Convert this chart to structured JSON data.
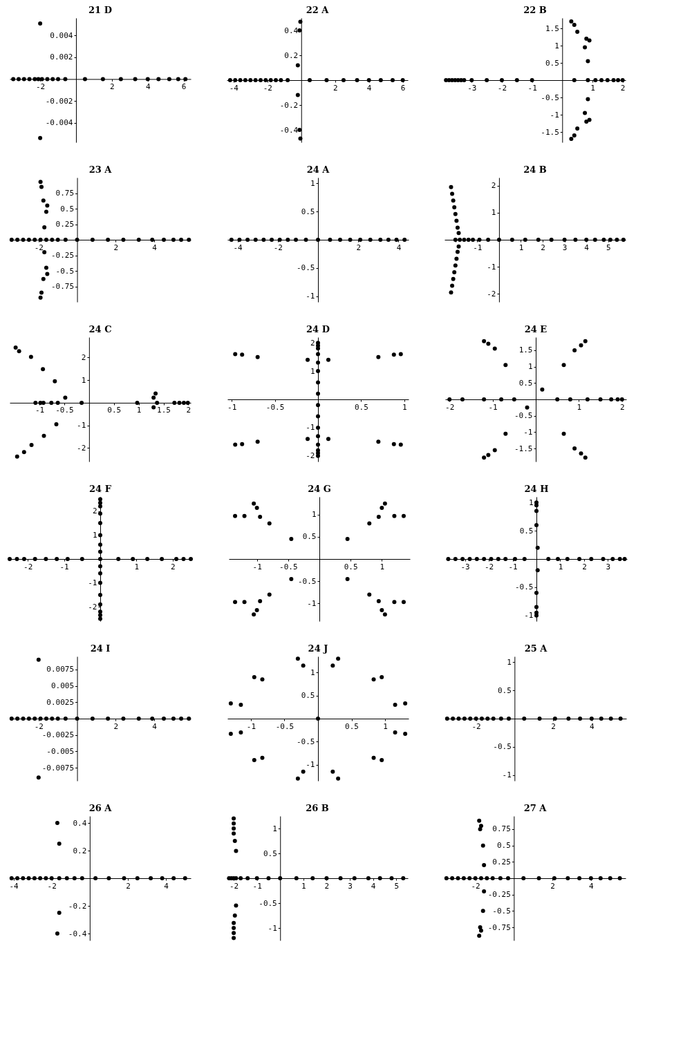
{
  "chart_data": [
    {
      "type": "scatter",
      "title": "21 D",
      "marker": "circle",
      "xlim": [
        -3.7,
        6.4
      ],
      "ylim": [
        -0.0058,
        0.0056
      ],
      "xticks": [
        -2,
        2,
        4,
        6
      ],
      "yticks": [
        -0.004,
        -0.002,
        0.002,
        0.004
      ],
      "x": [
        -2,
        -2,
        -3.5,
        -3.2,
        -2.9,
        -2.6,
        -2.3,
        -2.1,
        -1.9,
        -1.6,
        -1.3,
        -1,
        -0.6,
        0.5,
        1.5,
        2.5,
        3.3,
        4,
        4.6,
        5.2,
        5.7,
        6.1
      ],
      "series": [
        {
          "color": "#000000",
          "values": [
            0.0051,
            -0.0054,
            0,
            0,
            0,
            0,
            0,
            0,
            0,
            0,
            0,
            0,
            0,
            0,
            0,
            0,
            0,
            0,
            0,
            0,
            0,
            0
          ]
        }
      ]
    },
    {
      "type": "scatter",
      "title": "22 A",
      "marker": "circle",
      "xlim": [
        -4.4,
        6.3
      ],
      "ylim": [
        -0.5,
        0.5
      ],
      "xticks": [
        -4,
        -2,
        2,
        4,
        6
      ],
      "yticks": [
        -0.4,
        -0.2,
        0.2,
        0.4
      ],
      "x": [
        -0.05,
        -0.1,
        -0.2,
        -0.2,
        -0.1,
        -0.05,
        -4.2,
        -3.9,
        -3.6,
        -3.3,
        -3,
        -2.7,
        -2.4,
        -2.1,
        -1.8,
        -1.5,
        -1.2,
        -0.8,
        0.5,
        1.5,
        2.5,
        3.3,
        4,
        4.7,
        5.4,
        6
      ],
      "series": [
        {
          "color": "#000000",
          "values": [
            0.47,
            0.4,
            0.12,
            -0.12,
            -0.4,
            -0.47,
            0,
            0,
            0,
            0,
            0,
            0,
            0,
            0,
            0,
            0,
            0,
            0,
            0,
            0,
            0,
            0,
            0,
            0,
            0,
            0
          ]
        }
      ]
    },
    {
      "type": "scatter",
      "title": "22 B",
      "marker": "circle",
      "xlim": [
        -3.9,
        2.1
      ],
      "ylim": [
        -1.8,
        1.8
      ],
      "xticks": [
        -3,
        -2,
        -1,
        1,
        2
      ],
      "yticks": [
        -1.5,
        -1,
        -0.5,
        0.5,
        1,
        1.5
      ],
      "x": [
        0.3,
        0.4,
        0.5,
        0.8,
        0.9,
        0.75,
        0.85,
        0.3,
        0.4,
        0.5,
        0.8,
        0.9,
        0.75,
        0.85,
        -3.85,
        -3.75,
        -3.65,
        -3.55,
        -3.45,
        -3.35,
        -3.25,
        -3,
        -2.5,
        -2,
        -1.5,
        -1,
        0.4,
        0.85,
        1.1,
        1.3,
        1.5,
        1.7,
        1.85,
        2
      ],
      "series": [
        {
          "color": "#000000",
          "values": [
            1.7,
            1.6,
            1.4,
            1.2,
            1.15,
            0.95,
            0.55,
            -1.7,
            -1.6,
            -1.4,
            -1.2,
            -1.15,
            -0.95,
            -0.55,
            0,
            0,
            0,
            0,
            0,
            0,
            0,
            0,
            0,
            0,
            0,
            0,
            0,
            0,
            0,
            0,
            0,
            0,
            0,
            0
          ]
        }
      ]
    },
    {
      "type": "scatter",
      "title": "23 A",
      "marker": "circle",
      "xlim": [
        -3.5,
        5.9
      ],
      "ylim": [
        -1,
        1
      ],
      "xticks": [
        -2,
        2,
        4
      ],
      "yticks": [
        -0.75,
        -0.5,
        -0.25,
        0.25,
        0.5,
        0.75
      ],
      "x": [
        -1.9,
        -1.85,
        -1.75,
        -1.55,
        -1.6,
        -1.7,
        -1.9,
        -1.85,
        -1.75,
        -1.55,
        -1.6,
        -1.7,
        -3.4,
        -3.1,
        -2.8,
        -2.5,
        -2.2,
        -1.9,
        -1.6,
        -1.3,
        -1,
        -0.6,
        0,
        0.8,
        1.6,
        2.4,
        3.2,
        3.9,
        4.5,
        5,
        5.4,
        5.8
      ],
      "series": [
        {
          "color": "#000000",
          "values": [
            0.93,
            0.85,
            0.63,
            0.55,
            0.45,
            0.2,
            -0.93,
            -0.85,
            -0.63,
            -0.55,
            -0.45,
            -0.2,
            0,
            0,
            0,
            0,
            0,
            0,
            0,
            0,
            0,
            0,
            0,
            0,
            0,
            0,
            0,
            0,
            0,
            0,
            0,
            0
          ]
        }
      ]
    },
    {
      "type": "scatter",
      "title": "24 A",
      "marker": "circle",
      "xlim": [
        -4.5,
        4.5
      ],
      "ylim": [
        -1.1,
        1.1
      ],
      "xticks": [
        -4,
        -2,
        2,
        4
      ],
      "yticks": [
        -1,
        -0.5,
        0.5,
        1
      ],
      "x": [
        -4.3,
        -3.9,
        -3.5,
        -3.1,
        -2.7,
        -2.3,
        -1.9,
        -1.5,
        -1.1,
        -0.6,
        0,
        0.6,
        1.1,
        1.6,
        2.1,
        2.6,
        3.1,
        3.5,
        3.9,
        4.3
      ],
      "series": [
        {
          "color": "#000000",
          "values": [
            0,
            0,
            0,
            0,
            0,
            0,
            0,
            0,
            0,
            0,
            0,
            0,
            0,
            0,
            0,
            0,
            0,
            0,
            0,
            0
          ]
        }
      ]
    },
    {
      "type": "scatter",
      "title": "24 B",
      "marker": "circle",
      "xlim": [
        -2.5,
        5.8
      ],
      "ylim": [
        -2.3,
        2.3
      ],
      "xticks": [
        {
          "value": -2,
          "label": null
        },
        -1,
        1,
        2,
        3,
        4,
        5
      ],
      "yticks": [
        -2,
        -1,
        1,
        2
      ],
      "x": [
        -2.2,
        -2.15,
        -2.1,
        -2.05,
        -2,
        -1.95,
        -1.9,
        -1.85,
        -2.2,
        -2.15,
        -2.1,
        -2.05,
        -2,
        -1.95,
        -1.9,
        -1.85,
        -2,
        -1.8,
        -1.6,
        -1.4,
        -1.2,
        -0.9,
        -0.5,
        0,
        0.6,
        1.2,
        1.8,
        2.4,
        3,
        3.5,
        4,
        4.4,
        4.8,
        5.1,
        5.4,
        5.7
      ],
      "series": [
        {
          "color": "#000000",
          "values": [
            1.95,
            1.7,
            1.45,
            1.2,
            0.95,
            0.7,
            0.45,
            0.25,
            -1.95,
            -1.7,
            -1.45,
            -1.2,
            -0.95,
            -0.7,
            -0.45,
            -0.25,
            0,
            0,
            0,
            0,
            0,
            0,
            0,
            0,
            0,
            0,
            0,
            0,
            0,
            0,
            0,
            0,
            0,
            0,
            0,
            0
          ]
        }
      ]
    },
    {
      "type": "scatter",
      "title": "24 C",
      "marker": "circle",
      "xlim": [
        -1.6,
        2.05
      ],
      "ylim": [
        -2.6,
        2.9
      ],
      "xticks": [
        -1,
        -0.5,
        0.5,
        1,
        1.5,
        2
      ],
      "yticks": [
        -2,
        -1,
        1,
        2
      ],
      "x": [
        -1.48,
        -1.41,
        -1.17,
        -0.93,
        -0.69,
        -0.48,
        -1.45,
        -1.31,
        -1.16,
        -0.91,
        -0.66,
        1.3,
        1.34,
        1.3,
        -1.08,
        -0.98,
        -0.92,
        -0.76,
        -0.63,
        -0.15,
        0.97,
        1.37,
        1.72,
        1.82,
        1.91,
        1.99
      ],
      "series": [
        {
          "color": "#000000",
          "values": [
            2.44,
            2.28,
            2.03,
            1.49,
            0.95,
            0.23,
            -2.38,
            -2.18,
            -1.87,
            -1.46,
            -0.95,
            0.23,
            0.41,
            -0.2,
            0,
            0,
            0,
            0,
            0,
            0,
            0,
            0,
            0,
            0,
            0,
            0
          ]
        }
      ]
    },
    {
      "type": "scatter",
      "title": "24 D",
      "marker": "circle",
      "xlim": [
        -1.05,
        1.05
      ],
      "ylim": [
        -2.2,
        2.2
      ],
      "xticks": [
        -1,
        -0.5,
        0.5,
        1
      ],
      "yticks": [
        -2,
        -1,
        1,
        2
      ],
      "x": [
        -0.96,
        -0.88,
        -0.7,
        -0.12,
        0.12,
        0.7,
        0.88,
        0.96,
        -0.96,
        -0.88,
        -0.7,
        -0.12,
        0.12,
        0.7,
        0.88,
        0.96,
        0,
        0,
        0,
        0,
        0,
        0,
        0,
        0,
        0,
        0,
        0,
        0,
        0,
        0,
        0,
        0
      ],
      "series": [
        {
          "color": "#000000",
          "values": [
            1.6,
            1.58,
            1.5,
            1.4,
            1.4,
            1.5,
            1.58,
            1.6,
            -1.6,
            -1.58,
            -1.5,
            -1.4,
            -1.4,
            -1.5,
            -1.58,
            -1.6,
            2,
            1.9,
            1.8,
            1.6,
            1.3,
            1,
            0.6,
            0.2,
            -2,
            -1.9,
            -1.8,
            -1.6,
            -1.3,
            -1,
            -0.6,
            -0.2
          ]
        }
      ]
    },
    {
      "type": "scatter",
      "title": "24 E",
      "marker": "circle",
      "xlim": [
        -2.1,
        2.1
      ],
      "ylim": [
        -1.9,
        1.9
      ],
      "xticks": [
        -2,
        -1,
        1,
        2
      ],
      "yticks": [
        -1.5,
        -1,
        -0.5,
        0.5,
        1,
        1.5
      ],
      "x": [
        -1.2,
        -1.1,
        -0.95,
        -0.7,
        0.15,
        0.65,
        0.9,
        1.05,
        1.15,
        -1.2,
        -1.1,
        -0.95,
        -0.7,
        -0.2,
        0.65,
        0.9,
        1.05,
        1.15,
        -2,
        -1.7,
        -1.2,
        -0.8,
        -0.5,
        0.5,
        0.8,
        1.2,
        1.5,
        1.75,
        1.9,
        2
      ],
      "series": [
        {
          "color": "#000000",
          "values": [
            1.78,
            1.7,
            1.55,
            1.05,
            0.3,
            1.05,
            1.5,
            1.65,
            1.78,
            -1.78,
            -1.7,
            -1.55,
            -1.05,
            -0.25,
            -1.05,
            -1.5,
            -1.65,
            -1.78,
            0,
            0,
            0,
            0,
            0,
            0,
            0,
            0,
            0,
            0,
            0,
            0
          ]
        }
      ]
    },
    {
      "type": "scatter",
      "title": "24 F",
      "marker": "circle",
      "xlim": [
        -2.5,
        2.5
      ],
      "ylim": [
        -2.6,
        2.6
      ],
      "xticks": [
        -2,
        -1,
        1,
        2
      ],
      "yticks": [
        -2,
        -1,
        1,
        2
      ],
      "x": [
        0,
        0,
        0,
        0,
        0,
        0,
        0,
        0,
        0,
        0,
        0,
        0,
        0,
        0,
        0,
        0,
        -2.5,
        -2.3,
        -2.1,
        -1.8,
        -1.5,
        -1.2,
        -0.9,
        -0.5,
        0,
        0.5,
        0.9,
        1.3,
        1.7,
        2.1,
        2.3,
        2.5
      ],
      "series": [
        {
          "color": "#000000",
          "values": [
            2.5,
            2.35,
            2.2,
            1.9,
            1.5,
            1,
            0.6,
            0.3,
            -2.5,
            -2.35,
            -2.2,
            -1.9,
            -1.5,
            -1,
            -0.6,
            -0.3,
            0,
            0,
            0,
            0,
            0,
            0,
            0,
            0,
            0,
            0,
            0,
            0,
            0,
            0,
            0,
            0
          ]
        }
      ]
    },
    {
      "type": "scatter",
      "title": "24 G",
      "marker": "circle",
      "xlim": [
        -1.45,
        1.45
      ],
      "ylim": [
        -1.4,
        1.4
      ],
      "xticks": [
        -1,
        -0.5,
        0.5,
        1
      ],
      "yticks": [
        -1,
        -0.5,
        0.5,
        1
      ],
      "x": [
        0.45,
        0.8,
        0.95,
        1,
        1.05,
        1.2,
        1.35,
        -0.45,
        -0.8,
        -0.95,
        -1,
        -1.05,
        -1.2,
        -1.35,
        0.45,
        0.8,
        0.95,
        1,
        1.05,
        1.2,
        1.35,
        -0.45,
        -0.8,
        -0.95,
        -1,
        -1.05,
        -1.2,
        -1.35
      ],
      "series": [
        {
          "color": "#000000",
          "values": [
            0.45,
            0.8,
            0.95,
            1.15,
            1.25,
            0.97,
            0.97,
            0.45,
            0.8,
            0.95,
            1.15,
            1.25,
            0.97,
            0.97,
            -0.45,
            -0.8,
            -0.95,
            -1.15,
            -1.25,
            -0.97,
            -0.97,
            -0.45,
            -0.8,
            -0.95,
            -1.15,
            -1.25,
            -0.97,
            -0.97
          ]
        }
      ]
    },
    {
      "type": "scatter",
      "title": "24 H",
      "marker": "circle",
      "xlim": [
        -3.8,
        3.8
      ],
      "ylim": [
        -1.1,
        1.1
      ],
      "xticks": [
        -3,
        -2,
        -1,
        1,
        2,
        3
      ],
      "yticks": [
        -1,
        -0.5,
        0.5,
        1
      ],
      "x": [
        0,
        0,
        0,
        0,
        0.05,
        0,
        0,
        0,
        0,
        0.05,
        -3.7,
        -3.4,
        -3.1,
        -2.8,
        -2.5,
        -2.2,
        -1.9,
        -1.6,
        -1.3,
        -0.9,
        -0.5,
        0.5,
        0.9,
        1.3,
        1.8,
        2.3,
        2.8,
        3.2,
        3.5,
        3.7
      ],
      "series": [
        {
          "color": "#000000",
          "values": [
            1,
            0.95,
            0.85,
            0.6,
            0.2,
            -1,
            -0.95,
            -0.85,
            -0.6,
            -0.2,
            0,
            0,
            0,
            0,
            0,
            0,
            0,
            0,
            0,
            0,
            0,
            0,
            0,
            0,
            0,
            0,
            0,
            0,
            0,
            0
          ]
        }
      ]
    },
    {
      "type": "scatter",
      "title": "24 I",
      "marker": "circle",
      "xlim": [
        -3.5,
        5.9
      ],
      "ylim": [
        -0.0095,
        0.0095
      ],
      "xticks": [
        -2,
        2,
        4
      ],
      "yticks": [
        -0.0075,
        -0.005,
        -0.0025,
        0.0025,
        0.005,
        0.0075
      ],
      "x": [
        -2,
        -2,
        -3.4,
        -3.1,
        -2.8,
        -2.5,
        -2.2,
        -1.9,
        -1.6,
        -1.3,
        -1,
        -0.6,
        0,
        0.8,
        1.6,
        2.4,
        3.2,
        3.9,
        4.5,
        5,
        5.4,
        5.8
      ],
      "series": [
        {
          "color": "#000000",
          "values": [
            0.009,
            -0.009,
            0,
            0,
            0,
            0,
            0,
            0,
            0,
            0,
            0,
            0,
            0,
            0,
            0,
            0,
            0,
            0,
            0,
            0,
            0,
            0
          ]
        }
      ]
    },
    {
      "type": "scatter",
      "title": "24 J",
      "marker": "circle",
      "xlim": [
        -1.35,
        1.35
      ],
      "ylim": [
        -1.35,
        1.35
      ],
      "xticks": [
        -1,
        -0.5,
        0.5,
        1
      ],
      "yticks": [
        -1,
        -0.5,
        0.5,
        1
      ],
      "x": [
        0.3,
        0.22,
        0.83,
        0.95,
        1.15,
        1.3,
        -0.3,
        -0.22,
        -0.83,
        -0.95,
        -1.15,
        -1.3,
        0.3,
        0.22,
        0.83,
        0.95,
        1.15,
        1.3,
        -0.3,
        -0.22,
        -0.83,
        -0.95,
        -1.15,
        -1.3,
        0
      ],
      "series": [
        {
          "color": "#000000",
          "values": [
            1.3,
            1.15,
            0.85,
            0.9,
            0.3,
            0.33,
            1.3,
            1.15,
            0.85,
            0.9,
            0.3,
            0.33,
            -1.3,
            -1.15,
            -0.85,
            -0.9,
            -0.3,
            -0.33,
            -1.3,
            -1.15,
            -0.85,
            -0.9,
            -0.3,
            -0.33,
            0
          ]
        }
      ]
    },
    {
      "type": "scatter",
      "title": "25 A",
      "marker": "circle",
      "xlim": [
        -3.6,
        5.8
      ],
      "ylim": [
        -1.1,
        1.1
      ],
      "xticks": [
        -2,
        2,
        4
      ],
      "yticks": [
        -1,
        -0.5,
        0.5,
        1
      ],
      "x": [
        -3.5,
        -3.2,
        -2.9,
        -2.6,
        -2.3,
        -2,
        -1.7,
        -1.4,
        -1.1,
        -0.7,
        -0.3,
        0.5,
        1.3,
        2.1,
        2.8,
        3.4,
        4,
        4.5,
        5,
        5.5
      ],
      "series": [
        {
          "color": "#000000",
          "values": [
            0,
            0,
            0,
            0,
            0,
            0,
            0,
            0,
            0,
            0,
            0,
            0,
            0,
            0,
            0,
            0,
            0,
            0,
            0,
            0
          ]
        }
      ]
    },
    {
      "type": "scatter",
      "title": "26 A",
      "marker": "circle",
      "xlim": [
        -4.2,
        5.3
      ],
      "ylim": [
        -0.45,
        0.45
      ],
      "xticks": [
        -4,
        -2,
        2,
        4
      ],
      "yticks": [
        -0.4,
        -0.2,
        0.2,
        0.4
      ],
      "x": [
        -1.7,
        -1.6,
        -1.6,
        -1.7,
        -4.1,
        -3.8,
        -3.5,
        -3.2,
        -2.9,
        -2.6,
        -2.3,
        -2,
        -1.6,
        -1.2,
        -0.8,
        -0.4,
        0.3,
        1,
        1.8,
        2.5,
        3.2,
        3.8,
        4.4,
        5
      ],
      "series": [
        {
          "color": "#000000",
          "values": [
            0.4,
            0.25,
            -0.25,
            -0.4,
            0,
            0,
            0,
            0,
            0,
            0,
            0,
            0,
            0,
            0,
            0,
            0,
            0,
            0,
            0,
            0,
            0,
            0,
            0,
            0
          ]
        }
      ]
    },
    {
      "type": "scatter",
      "title": "26 B",
      "marker": "circle",
      "xlim": [
        -2.3,
        5.5
      ],
      "ylim": [
        -1.25,
        1.25
      ],
      "xticks": [
        -2,
        -1,
        1,
        2,
        3,
        4,
        5
      ],
      "yticks": [
        -1,
        -0.5,
        0.5,
        1
      ],
      "x": [
        -2,
        -2,
        -2,
        -2,
        -1.95,
        -1.9,
        -2,
        -2,
        -2,
        -2,
        -1.95,
        -1.9,
        -2.2,
        -2.1,
        -2,
        -1.9,
        -1.7,
        -1.4,
        -1,
        -0.5,
        0,
        0.7,
        1.4,
        2,
        2.6,
        3.2,
        3.8,
        4.3,
        4.8,
        5.3
      ],
      "series": [
        {
          "color": "#000000",
          "values": [
            1.2,
            1.1,
            1,
            0.9,
            0.75,
            0.55,
            -1.2,
            -1.1,
            -1,
            -0.9,
            -0.75,
            -0.55,
            0,
            0,
            0,
            0,
            0,
            0,
            0,
            0,
            0,
            0,
            0,
            0,
            0,
            0,
            0,
            0,
            0,
            0
          ]
        }
      ]
    },
    {
      "type": "scatter",
      "title": "27 A",
      "marker": "circle",
      "xlim": [
        -3.6,
        5.8
      ],
      "ylim": [
        -0.95,
        0.95
      ],
      "xticks": [
        -2,
        2,
        4
      ],
      "yticks": [
        -0.75,
        -0.5,
        -0.25,
        0.25,
        0.5,
        0.75
      ],
      "x": [
        -1.8,
        -1.7,
        -1.75,
        -1.6,
        -1.55,
        -1.8,
        -1.7,
        -1.75,
        -1.6,
        -1.55,
        -3.5,
        -3.2,
        -2.9,
        -2.6,
        -2.3,
        -2,
        -1.7,
        -1.4,
        -1.1,
        -0.7,
        -0.3,
        0.5,
        1.3,
        2.1,
        2.8,
        3.4,
        4,
        4.5,
        5,
        5.5
      ],
      "series": [
        {
          "color": "#000000",
          "values": [
            0.88,
            0.8,
            0.75,
            0.5,
            0.2,
            -0.88,
            -0.8,
            -0.75,
            -0.5,
            -0.2,
            0,
            0,
            0,
            0,
            0,
            0,
            0,
            0,
            0,
            0,
            0,
            0,
            0,
            0,
            0,
            0,
            0,
            0,
            0,
            0
          ]
        }
      ]
    }
  ]
}
